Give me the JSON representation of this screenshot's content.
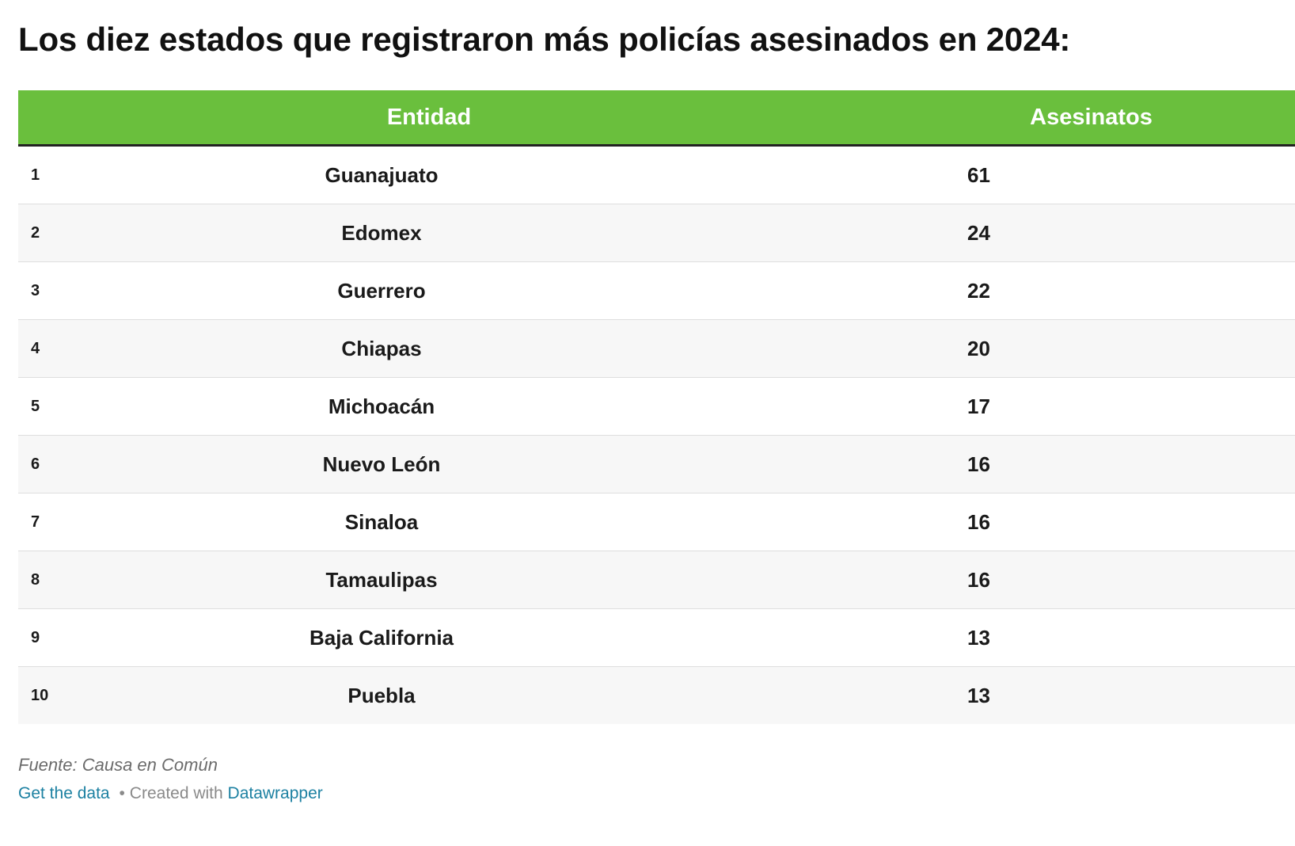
{
  "title": "Los diez estados que registraron más policías asesinados en 2024:",
  "header": {
    "accent_color": "#6abf3d",
    "col_entity": "Entidad",
    "col_value": "Asesinatos"
  },
  "chart_data": {
    "type": "table",
    "title": "Los diez estados que registraron más policías asesinados en 2024:",
    "columns": [
      "",
      "Entidad",
      "Asesinatos"
    ],
    "rows": [
      {
        "rank": "1",
        "entity": "Guanajuato",
        "value": "61"
      },
      {
        "rank": "2",
        "entity": "Edomex",
        "value": "24"
      },
      {
        "rank": "3",
        "entity": "Guerrero",
        "value": "22"
      },
      {
        "rank": "4",
        "entity": "Chiapas",
        "value": "20"
      },
      {
        "rank": "5",
        "entity": "Michoacán",
        "value": "17"
      },
      {
        "rank": "6",
        "entity": "Nuevo León",
        "value": "16"
      },
      {
        "rank": "7",
        "entity": "Sinaloa",
        "value": "16"
      },
      {
        "rank": "8",
        "entity": "Tamaulipas",
        "value": "16"
      },
      {
        "rank": "9",
        "entity": "Baja California",
        "value": "13"
      },
      {
        "rank": "10",
        "entity": "Puebla",
        "value": "13"
      }
    ]
  },
  "footer": {
    "source": "Fuente: Causa en Común",
    "get_data": "Get the data",
    "separator": "•",
    "created_with": "Created with",
    "tool": "Datawrapper"
  }
}
